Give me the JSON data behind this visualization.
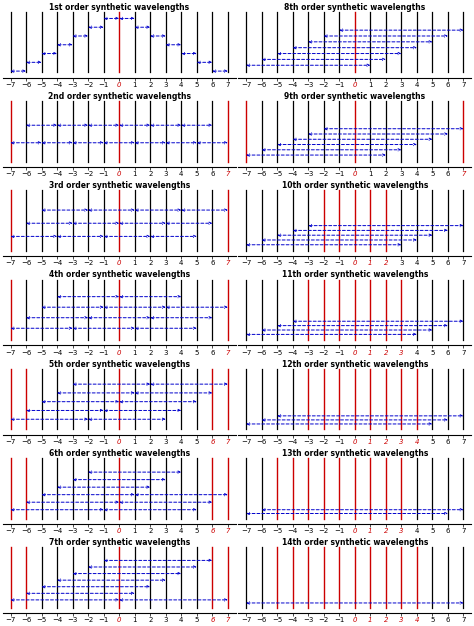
{
  "orders": [
    1,
    2,
    3,
    4,
    5,
    6,
    7,
    8,
    9,
    10,
    11,
    12,
    13,
    14
  ],
  "xmin": -7,
  "xmax": 7,
  "bg": "#ffffff",
  "arrow_color": "#0000cc",
  "red_color": "#cc0000",
  "black_color": "#000000",
  "red_labels": {
    "1": [
      0
    ],
    "2": [
      -7,
      0,
      7
    ],
    "3": [
      -7,
      0,
      7
    ],
    "4": [
      -7,
      0,
      7
    ],
    "5": [
      -7,
      -6,
      0,
      6,
      7
    ],
    "6": [
      -7,
      -6,
      0,
      6,
      7
    ],
    "7": [
      -7,
      -6,
      0,
      6,
      7
    ],
    "8": [
      0
    ],
    "9": [
      -7,
      0,
      7
    ],
    "10": [
      -2,
      -1,
      0,
      1,
      2
    ],
    "11": [
      -3,
      -2,
      -1,
      0,
      1,
      2,
      3
    ],
    "12": [
      -3,
      -2,
      -1,
      0,
      1,
      2,
      3,
      4
    ],
    "13": [
      -5,
      -4,
      -3,
      -2,
      -1,
      0,
      1,
      2,
      3
    ],
    "14": [
      -5,
      -4,
      -3,
      -2,
      -1,
      0,
      1,
      2,
      3,
      4
    ]
  },
  "red_vlines": {
    "1": [
      0
    ],
    "2": [
      -7,
      0,
      7
    ],
    "3": [
      -7,
      0,
      7
    ],
    "4": [
      -7,
      0,
      7
    ],
    "5": [
      -7,
      -6,
      0,
      6,
      7
    ],
    "6": [
      -7,
      -6,
      0,
      6,
      7
    ],
    "7": [
      -7,
      -6,
      0,
      6,
      7
    ],
    "8": [
      0
    ],
    "9": [
      -7,
      0,
      7
    ],
    "10": [
      -2,
      -1,
      0,
      1,
      2
    ],
    "11": [
      -3,
      -2,
      -1,
      0,
      1,
      2,
      3
    ],
    "12": [
      -3,
      -2,
      -1,
      0,
      1,
      2,
      3,
      4
    ],
    "13": [
      -5,
      -4,
      -3,
      -2,
      -1,
      0,
      1,
      2,
      3
    ],
    "14": [
      -5,
      -4,
      -3,
      -2,
      -1,
      0,
      1,
      2,
      3,
      4
    ]
  }
}
